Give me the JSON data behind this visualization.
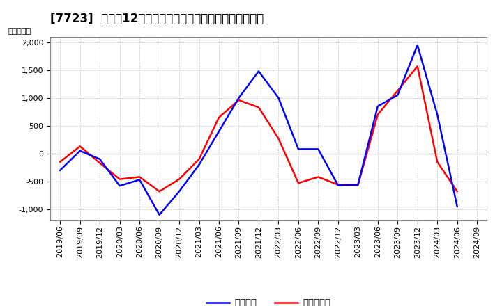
{
  "title": "[7723]  利益だ12か月移動合計の対前年同期増減額の推移",
  "ylabel": "（百万円）",
  "x_labels": [
    "2019/06",
    "2019/09",
    "2019/12",
    "2020/03",
    "2020/06",
    "2020/09",
    "2020/12",
    "2021/03",
    "2021/06",
    "2021/09",
    "2021/12",
    "2022/03",
    "2022/06",
    "2022/09",
    "2022/12",
    "2023/03",
    "2023/06",
    "2023/09",
    "2023/12",
    "2024/03",
    "2024/06",
    "2024/09"
  ],
  "keijo_rieki": [
    -300,
    50,
    -100,
    -580,
    -470,
    -1100,
    -680,
    -200,
    400,
    1000,
    1480,
    1000,
    80,
    80,
    -570,
    -560,
    850,
    1050,
    1950,
    700,
    -950,
    null
  ],
  "tokki_junrieki": [
    -150,
    130,
    -170,
    -460,
    -420,
    -680,
    -460,
    -100,
    650,
    960,
    830,
    270,
    -530,
    -420,
    -560,
    -570,
    700,
    1130,
    1570,
    -150,
    -680,
    null
  ],
  "ylim": [
    -1200,
    2100
  ],
  "yticks": [
    -1000,
    -500,
    0,
    500,
    1000,
    1500,
    2000
  ],
  "line_color_keijo": "#0000ff",
  "line_color_tokki": "#ff0000",
  "line_width": 1.8,
  "bg_color": "#ffffff",
  "grid_color": "#bbbbbb",
  "legend_keijo": "経常利益",
  "legend_tokki": "当期純利益",
  "title_fontsize": 12,
  "axis_fontsize": 8
}
